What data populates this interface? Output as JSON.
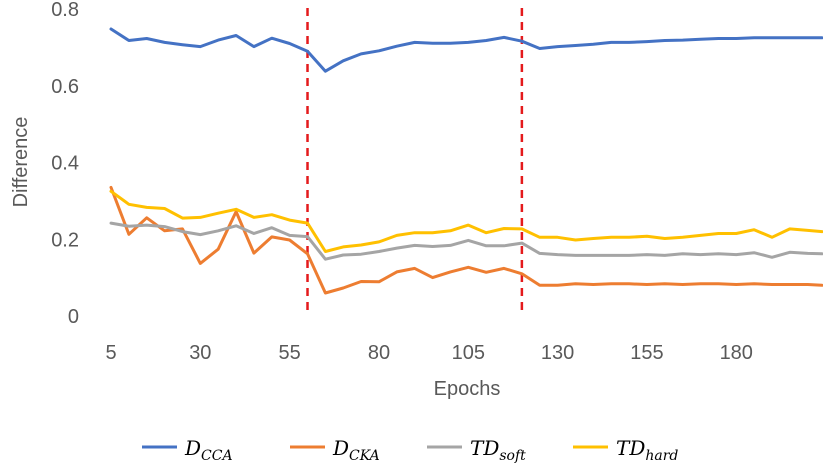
{
  "chart_data": {
    "type": "line",
    "title": "",
    "xlabel": "Epochs",
    "ylabel": "Difference",
    "x_tick_labels": [
      "5",
      "30",
      "55",
      "80",
      "105",
      "130",
      "155",
      "180"
    ],
    "y_tick_labels": [
      "0",
      "0.2",
      "0.4",
      "0.6",
      "0.8"
    ],
    "xlim": [
      5,
      204
    ],
    "ylim": [
      0,
      0.8
    ],
    "grid": false,
    "legend_position": "bottom",
    "vertical_markers": [
      {
        "x": 60,
        "color": "#E41A1C",
        "style": "dashed"
      },
      {
        "x": 120,
        "color": "#E41A1C",
        "style": "dashed"
      }
    ],
    "x": [
      5,
      10,
      15,
      20,
      25,
      30,
      35,
      40,
      45,
      50,
      55,
      60,
      65,
      70,
      75,
      80,
      85,
      90,
      95,
      100,
      105,
      110,
      115,
      120,
      125,
      130,
      135,
      140,
      145,
      150,
      155,
      160,
      165,
      170,
      175,
      180,
      185,
      190,
      195,
      200,
      204
    ],
    "series": [
      {
        "legend_main": "D",
        "legend_sub": "CCA",
        "color": "#4472C4",
        "values": [
          0.748,
          0.718,
          0.723,
          0.713,
          0.707,
          0.702,
          0.719,
          0.731,
          0.702,
          0.724,
          0.71,
          0.69,
          0.638,
          0.665,
          0.683,
          0.691,
          0.703,
          0.713,
          0.711,
          0.711,
          0.713,
          0.718,
          0.726,
          0.716,
          0.697,
          0.702,
          0.705,
          0.708,
          0.713,
          0.713,
          0.715,
          0.718,
          0.719,
          0.721,
          0.723,
          0.723,
          0.725,
          0.725,
          0.725,
          0.725,
          0.725
        ]
      },
      {
        "legend_main": "D",
        "legend_sub": "CKA",
        "color": "#ED7D31",
        "values": [
          0.335,
          0.213,
          0.256,
          0.222,
          0.227,
          0.137,
          0.174,
          0.272,
          0.164,
          0.206,
          0.198,
          0.162,
          0.06,
          0.073,
          0.09,
          0.089,
          0.115,
          0.124,
          0.1,
          0.115,
          0.127,
          0.114,
          0.124,
          0.11,
          0.08,
          0.08,
          0.084,
          0.082,
          0.084,
          0.084,
          0.082,
          0.084,
          0.082,
          0.084,
          0.084,
          0.082,
          0.084,
          0.082,
          0.082,
          0.082,
          0.08
        ]
      },
      {
        "legend_main": "TD",
        "legend_sub": "soft",
        "color": "#A5A5A5",
        "values": [
          0.242,
          0.234,
          0.237,
          0.233,
          0.22,
          0.212,
          0.222,
          0.235,
          0.215,
          0.23,
          0.21,
          0.207,
          0.148,
          0.159,
          0.161,
          0.168,
          0.177,
          0.184,
          0.181,
          0.184,
          0.197,
          0.183,
          0.183,
          0.19,
          0.163,
          0.16,
          0.158,
          0.158,
          0.158,
          0.158,
          0.16,
          0.158,
          0.162,
          0.16,
          0.162,
          0.16,
          0.165,
          0.153,
          0.166,
          0.163,
          0.162
        ]
      },
      {
        "legend_main": "TD",
        "legend_sub": "hard",
        "color": "#FFC000",
        "values": [
          0.325,
          0.291,
          0.283,
          0.28,
          0.255,
          0.257,
          0.268,
          0.278,
          0.257,
          0.264,
          0.25,
          0.242,
          0.168,
          0.18,
          0.185,
          0.193,
          0.21,
          0.217,
          0.217,
          0.222,
          0.237,
          0.217,
          0.228,
          0.227,
          0.205,
          0.205,
          0.198,
          0.202,
          0.205,
          0.205,
          0.208,
          0.202,
          0.205,
          0.21,
          0.215,
          0.215,
          0.225,
          0.205,
          0.227,
          0.223,
          0.22
        ]
      }
    ]
  }
}
